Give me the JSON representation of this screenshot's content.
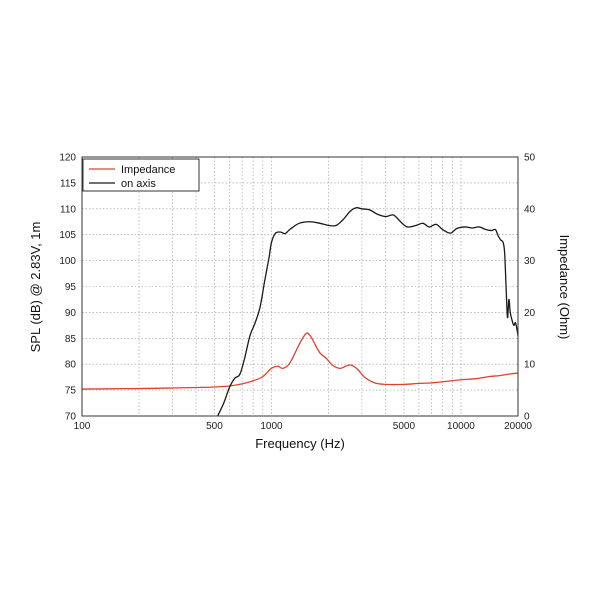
{
  "chart_data": {
    "type": "line",
    "xscale": "log",
    "xlabel": "Frequency (Hz)",
    "ylabel_left": "SPL (dB) @ 2.83V, 1m",
    "ylabel_right": "Impedance (Ohm)",
    "xlim": [
      100,
      20000
    ],
    "ylim_left": [
      70,
      120
    ],
    "ylim_right": [
      0,
      50
    ],
    "x_tick_labels": [
      "100",
      "500",
      "1000",
      "5000",
      "10000",
      "20000"
    ],
    "left_tick_labels": [
      "70",
      "75",
      "80",
      "85",
      "90",
      "95",
      "100",
      "105",
      "110",
      "115",
      "120"
    ],
    "right_tick_labels": [
      "0",
      "10",
      "20",
      "30",
      "40",
      "50"
    ],
    "grid": true,
    "legend_position": "top-left",
    "colors": {
      "impedance": "#e0412f",
      "on_axis": "#1a1a1a",
      "grid": "#9a9a9a",
      "frame": "#333333"
    },
    "series": [
      {
        "name": "Impedance",
        "axis": "right",
        "color": "#e0412f",
        "points": [
          [
            100,
            5.2
          ],
          [
            200,
            5.3
          ],
          [
            300,
            5.4
          ],
          [
            400,
            5.5
          ],
          [
            500,
            5.6
          ],
          [
            600,
            5.8
          ],
          [
            700,
            6.2
          ],
          [
            800,
            6.8
          ],
          [
            900,
            7.6
          ],
          [
            1000,
            9.2
          ],
          [
            1080,
            9.6
          ],
          [
            1150,
            9.2
          ],
          [
            1250,
            10.2
          ],
          [
            1400,
            13.8
          ],
          [
            1520,
            15.9
          ],
          [
            1600,
            15.5
          ],
          [
            1700,
            13.8
          ],
          [
            1800,
            12.2
          ],
          [
            1950,
            11.1
          ],
          [
            2100,
            9.8
          ],
          [
            2300,
            9.2
          ],
          [
            2500,
            9.7
          ],
          [
            2650,
            9.8
          ],
          [
            2850,
            9.0
          ],
          [
            3100,
            7.5
          ],
          [
            3500,
            6.4
          ],
          [
            4000,
            6.1
          ],
          [
            5000,
            6.1
          ],
          [
            6000,
            6.3
          ],
          [
            7000,
            6.4
          ],
          [
            8000,
            6.6
          ],
          [
            10000,
            7.0
          ],
          [
            12000,
            7.2
          ],
          [
            14000,
            7.6
          ],
          [
            16000,
            7.8
          ],
          [
            18000,
            8.1
          ],
          [
            20000,
            8.3
          ]
        ]
      },
      {
        "name": "on axis",
        "axis": "left",
        "color": "#1a1a1a",
        "points": [
          [
            520,
            70.0
          ],
          [
            560,
            72.5
          ],
          [
            600,
            75.5
          ],
          [
            640,
            77.3
          ],
          [
            680,
            78.0
          ],
          [
            720,
            81.0
          ],
          [
            770,
            85.5
          ],
          [
            820,
            88.0
          ],
          [
            870,
            91.0
          ],
          [
            920,
            96.0
          ],
          [
            970,
            100.5
          ],
          [
            1000,
            103.5
          ],
          [
            1050,
            105.3
          ],
          [
            1120,
            105.5
          ],
          [
            1180,
            105.2
          ],
          [
            1250,
            106.0
          ],
          [
            1400,
            107.2
          ],
          [
            1600,
            107.5
          ],
          [
            1800,
            107.2
          ],
          [
            2000,
            106.8
          ],
          [
            2200,
            106.8
          ],
          [
            2400,
            108.0
          ],
          [
            2600,
            109.5
          ],
          [
            2800,
            110.2
          ],
          [
            3000,
            110.0
          ],
          [
            3300,
            109.8
          ],
          [
            3600,
            109.0
          ],
          [
            4000,
            108.5
          ],
          [
            4400,
            108.8
          ],
          [
            4800,
            107.5
          ],
          [
            5200,
            106.5
          ],
          [
            5800,
            106.8
          ],
          [
            6300,
            107.2
          ],
          [
            6800,
            106.5
          ],
          [
            7400,
            107.0
          ],
          [
            8000,
            106.0
          ],
          [
            8800,
            105.3
          ],
          [
            9500,
            106.2
          ],
          [
            10500,
            106.5
          ],
          [
            11500,
            106.3
          ],
          [
            12500,
            106.5
          ],
          [
            13500,
            106.0
          ],
          [
            14500,
            105.8
          ],
          [
            15200,
            106.0
          ],
          [
            15700,
            104.8
          ],
          [
            16200,
            104.0
          ],
          [
            16700,
            103.5
          ],
          [
            17000,
            101.5
          ],
          [
            17300,
            95.0
          ],
          [
            17600,
            89.0
          ],
          [
            17900,
            92.5
          ],
          [
            18200,
            90.0
          ],
          [
            18600,
            88.5
          ],
          [
            19000,
            87.5
          ],
          [
            19400,
            88.0
          ],
          [
            19800,
            86.5
          ],
          [
            20000,
            85.5
          ]
        ]
      }
    ]
  }
}
